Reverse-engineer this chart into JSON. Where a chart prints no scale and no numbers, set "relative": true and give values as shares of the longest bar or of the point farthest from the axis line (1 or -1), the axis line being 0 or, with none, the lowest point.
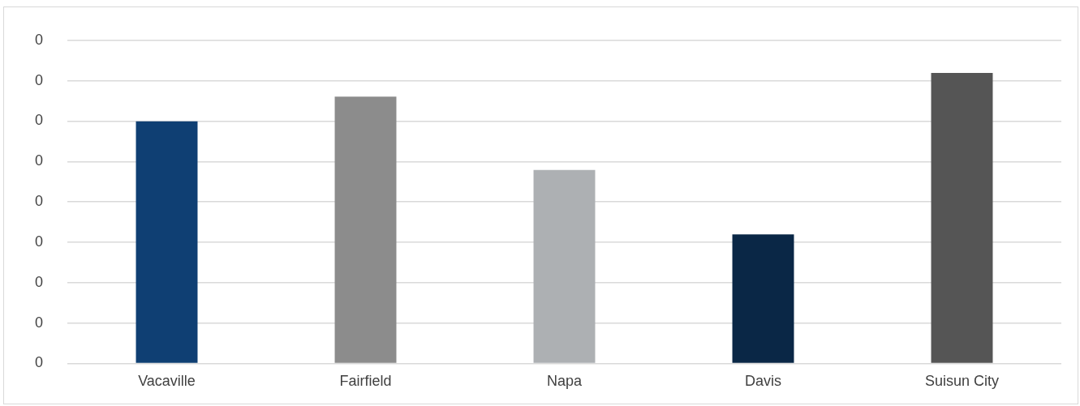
{
  "chart_data": {
    "type": "bar",
    "relative": true,
    "categories": [
      "Vacaville",
      "Fairfield",
      "Napa",
      "Davis",
      "Suisun City"
    ],
    "values": [
      0.833,
      0.918,
      0.666,
      0.444,
      1
    ],
    "colors": [
      "#0f3f73",
      "#8c8c8c",
      "#adb0b3",
      "#0a2746",
      "#555555"
    ],
    "annotations": [
      "0",
      "0",
      "0",
      "0",
      "0",
      "0",
      "0",
      "0",
      "0"
    ],
    "grid": "y",
    "legend": false
  }
}
